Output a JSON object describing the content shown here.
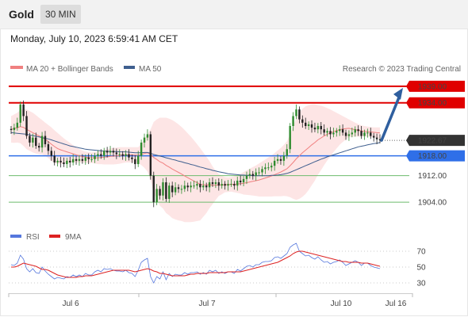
{
  "header": {
    "instrument": "Gold",
    "timeframe": "30 MIN",
    "datetime": "Monday, July 10, 2023 6:59:41 AM CET"
  },
  "legend": {
    "ma20": "MA 20 + Bollinger Bands",
    "ma50": "MA 50",
    "copyright": "Research © 2023 Trading Central",
    "rsi": "RSI",
    "ma9": "9MA"
  },
  "colors": {
    "up": "#2e8b2e",
    "down": "#222222",
    "resistance": "#e00000",
    "support": "#2f6fe8",
    "ma20": "#f08080",
    "ma50": "#3f5f8f",
    "band": "#fde0e0",
    "arrow": "#2f5f9f",
    "rsi": "#5577dd",
    "ma9": "#dd2222"
  },
  "chart_data": [
    {
      "type": "candlestick",
      "x_labels": [
        "Jul 6",
        "Jul 7",
        "Jul 10",
        "Jul 16"
      ],
      "ylim": [
        1898,
        1942
      ],
      "levels": [
        {
          "value": 1939.0,
          "label": "1939.00",
          "kind": "resistance"
        },
        {
          "value": 1934.0,
          "label": "1934.00",
          "kind": "resistance"
        },
        {
          "value": 1922.67,
          "label": "1922.67",
          "kind": "last"
        },
        {
          "value": 1918.0,
          "label": "1918.00",
          "kind": "support"
        },
        {
          "value": 1912.0,
          "label": "1912.00",
          "kind": "target"
        },
        {
          "value": 1904.0,
          "label": "1904.00",
          "kind": "target"
        }
      ],
      "close": [
        1925.8,
        1926.5,
        1928.0,
        1933.5,
        1930.0,
        1924.0,
        1922.0,
        1923.5,
        1921.0,
        1920.5,
        1924.0,
        1921.5,
        1919.5,
        1918.0,
        1916.0,
        1916.5,
        1916.0,
        1915.5,
        1916.5,
        1916.0,
        1917.0,
        1916.5,
        1917.0,
        1916.5,
        1917.5,
        1917.0,
        1917.0,
        1918.0,
        1918.5,
        1918.0,
        1919.5,
        1919.0,
        1919.5,
        1919.0,
        1918.5,
        1918.5,
        1918.0,
        1918.5,
        1917.5,
        1917.0,
        1915.5,
        1918.0,
        1922.0,
        1923.5,
        1924.5,
        1912.0,
        1904.0,
        1908.0,
        1906.0,
        1910.0,
        1905.0,
        1909.0,
        1907.0,
        1908.5,
        1908.0,
        1908.0,
        1909.0,
        1908.5,
        1909.0,
        1909.0,
        1909.5,
        1908.5,
        1909.0,
        1908.5,
        1910.0,
        1909.5,
        1910.0,
        1909.0,
        1909.5,
        1909.0,
        1909.5,
        1909.5,
        1909.0,
        1910.5,
        1910.0,
        1911.0,
        1912.0,
        1912.5,
        1912.0,
        1913.0,
        1913.0,
        1914.0,
        1914.5,
        1914.5,
        1915.0,
        1916.5,
        1917.0,
        1916.5,
        1918.0,
        1920.0,
        1927.0,
        1930.0,
        1932.0,
        1929.0,
        1928.0,
        1927.0,
        1927.5,
        1926.5,
        1926.0,
        1927.0,
        1926.0,
        1925.0,
        1925.5,
        1924.5,
        1925.0,
        1925.5,
        1926.0,
        1925.0,
        1924.0,
        1924.5,
        1925.0,
        1926.0,
        1925.5,
        1924.0,
        1925.0,
        1925.0,
        1924.0,
        1923.5,
        1923.0,
        1922.67
      ],
      "ma20": [
        1926.0,
        1926.2,
        1926.5,
        1926.8,
        1926.6,
        1926.0,
        1925.5,
        1925.0,
        1924.5,
        1924.0,
        1923.6,
        1923.0,
        1922.3,
        1921.5,
        1920.8,
        1920.2,
        1919.8,
        1919.5,
        1919.2,
        1918.9,
        1918.6,
        1918.3,
        1918.0,
        1917.8,
        1917.6,
        1917.5,
        1917.4,
        1917.4,
        1917.4,
        1917.5,
        1917.6,
        1917.7,
        1917.8,
        1917.9,
        1918.0,
        1918.1,
        1918.2,
        1918.3,
        1918.3,
        1918.3,
        1918.2,
        1918.2,
        1918.4,
        1918.7,
        1918.9,
        1918.4,
        1917.5,
        1916.9,
        1916.2,
        1915.8,
        1915.1,
        1914.6,
        1914.0,
        1913.5,
        1913.0,
        1912.5,
        1911.9,
        1911.4,
        1910.9,
        1910.4,
        1909.9,
        1909.4,
        1909.3,
        1909.2,
        1909.3,
        1909.1,
        1909.1,
        1909.2,
        1909.2,
        1909.3,
        1909.3,
        1909.4,
        1909.4,
        1909.5,
        1909.6,
        1909.7,
        1909.9,
        1910.1,
        1910.3,
        1910.5,
        1910.7,
        1911.0,
        1911.3,
        1911.6,
        1911.9,
        1912.3,
        1912.7,
        1913.1,
        1913.6,
        1914.1,
        1915.0,
        1916.0,
        1917.1,
        1918.0,
        1918.9,
        1919.7,
        1920.5,
        1921.3,
        1922.0,
        1922.8,
        1923.4,
        1924.0,
        1924.5,
        1924.9,
        1925.3,
        1925.6,
        1925.9,
        1926.1,
        1926.2,
        1926.3,
        1926.1,
        1925.9,
        1925.7,
        1925.5,
        1925.4,
        1925.3,
        1925.2,
        1925.1,
        1925.0,
        1924.9
      ],
      "bb_upper": [
        1930.0,
        1930.5,
        1931.0,
        1931.8,
        1932.2,
        1932.0,
        1931.5,
        1931.0,
        1930.3,
        1929.5,
        1928.8,
        1928.0,
        1927.3,
        1926.6,
        1925.7,
        1924.9,
        1924.1,
        1923.3,
        1922.6,
        1921.9,
        1921.2,
        1920.6,
        1920.0,
        1919.6,
        1919.3,
        1919.1,
        1919.0,
        1919.1,
        1919.3,
        1919.5,
        1919.8,
        1920.0,
        1920.2,
        1920.4,
        1920.5,
        1920.6,
        1920.6,
        1920.6,
        1920.6,
        1920.6,
        1920.6,
        1920.6,
        1921.6,
        1923.0,
        1924.5,
        1926.0,
        1928.2,
        1929.0,
        1929.5,
        1929.5,
        1929.5,
        1929.2,
        1928.8,
        1928.2,
        1927.5,
        1926.7,
        1925.8,
        1924.8,
        1923.8,
        1922.7,
        1921.5,
        1920.3,
        1919.0,
        1917.7,
        1916.4,
        1914.8,
        1913.5,
        1912.5,
        1912.0,
        1911.6,
        1911.5,
        1911.6,
        1911.8,
        1912.2,
        1912.6,
        1913.1,
        1913.6,
        1914.1,
        1914.6,
        1915.1,
        1915.7,
        1916.3,
        1916.9,
        1917.5,
        1918.1,
        1918.8,
        1919.6,
        1920.4,
        1921.3,
        1922.4,
        1924.5,
        1927.0,
        1929.5,
        1931.0,
        1932.2,
        1932.9,
        1933.3,
        1933.5,
        1933.5,
        1933.3,
        1933.1,
        1932.8,
        1932.4,
        1932.0,
        1931.5,
        1931.0,
        1930.5,
        1930.0,
        1929.5,
        1929.0,
        1928.5,
        1928.0,
        1927.6,
        1927.2,
        1927.0,
        1926.8,
        1926.7,
        1926.6,
        1926.6,
        1926.6
      ],
      "bb_lower": [
        1922.0,
        1921.9,
        1922.0,
        1921.8,
        1921.0,
        1920.0,
        1919.5,
        1919.0,
        1918.7,
        1918.5,
        1918.4,
        1918.0,
        1917.3,
        1916.4,
        1915.9,
        1915.5,
        1915.5,
        1915.7,
        1915.8,
        1915.9,
        1916.0,
        1916.0,
        1916.0,
        1916.0,
        1915.9,
        1915.9,
        1915.8,
        1915.7,
        1915.5,
        1915.5,
        1915.4,
        1915.4,
        1915.4,
        1915.4,
        1915.5,
        1915.6,
        1915.8,
        1916.0,
        1916.0,
        1916.0,
        1915.8,
        1915.8,
        1915.2,
        1914.4,
        1913.3,
        1910.8,
        1906.8,
        1904.8,
        1902.9,
        1902.1,
        1900.7,
        1900.0,
        1899.2,
        1898.8,
        1898.5,
        1898.3,
        1898.0,
        1898.0,
        1898.0,
        1898.1,
        1898.3,
        1898.5,
        1899.6,
        1900.7,
        1902.2,
        1903.4,
        1904.7,
        1905.9,
        1906.4,
        1907.0,
        1907.1,
        1907.2,
        1907.0,
        1906.8,
        1906.6,
        1906.3,
        1906.2,
        1906.1,
        1906.0,
        1905.9,
        1905.7,
        1905.7,
        1905.7,
        1905.7,
        1905.7,
        1905.8,
        1905.8,
        1905.8,
        1905.9,
        1905.8,
        1905.5,
        1905.0,
        1904.7,
        1905.0,
        1905.6,
        1906.5,
        1907.7,
        1909.1,
        1910.5,
        1912.3,
        1913.7,
        1915.2,
        1916.6,
        1917.8,
        1919.1,
        1920.2,
        1921.3,
        1922.2,
        1922.9,
        1923.6,
        1923.7,
        1923.8,
        1923.8,
        1923.8,
        1923.8,
        1923.8,
        1923.7,
        1923.6,
        1923.4,
        1923.2
      ],
      "ma50": [
        1925.0,
        1924.9,
        1924.8,
        1924.7,
        1924.6,
        1924.5,
        1924.3,
        1924.1,
        1923.9,
        1923.7,
        1923.5,
        1923.3,
        1923.1,
        1922.8,
        1922.5,
        1922.2,
        1921.9,
        1921.6,
        1921.3,
        1921.0,
        1920.8,
        1920.6,
        1920.4,
        1920.2,
        1920.0,
        1919.9,
        1919.8,
        1919.7,
        1919.6,
        1919.5,
        1919.4,
        1919.4,
        1919.3,
        1919.3,
        1919.3,
        1919.2,
        1919.2,
        1919.2,
        1919.1,
        1919.0,
        1918.9,
        1918.9,
        1918.9,
        1919.0,
        1919.0,
        1918.8,
        1918.4,
        1918.2,
        1917.9,
        1917.7,
        1917.4,
        1917.2,
        1916.9,
        1916.7,
        1916.4,
        1916.2,
        1915.9,
        1915.7,
        1915.4,
        1915.2,
        1914.9,
        1914.6,
        1914.4,
        1914.1,
        1913.9,
        1913.6,
        1913.4,
        1913.2,
        1913.0,
        1912.8,
        1912.6,
        1912.5,
        1912.4,
        1912.3,
        1912.2,
        1912.2,
        1912.1,
        1912.1,
        1912.0,
        1912.0,
        1912.0,
        1912.0,
        1912.0,
        1912.0,
        1912.1,
        1912.1,
        1912.2,
        1912.3,
        1912.5,
        1912.7,
        1913.0,
        1913.4,
        1913.8,
        1914.2,
        1914.6,
        1915.0,
        1915.4,
        1915.8,
        1916.2,
        1916.6,
        1917.0,
        1917.3,
        1917.7,
        1918.0,
        1918.3,
        1918.6,
        1918.9,
        1919.2,
        1919.5,
        1919.8,
        1920.1,
        1920.4,
        1920.7,
        1920.9,
        1921.1,
        1921.3,
        1921.5,
        1921.7,
        1921.8,
        1922.0
      ],
      "forecast_arrow": {
        "from": 1922.67,
        "to": 1939.0
      }
    },
    {
      "type": "line",
      "title": "RSI",
      "ylim": [
        20,
        80
      ],
      "yticks": [
        70,
        50,
        30
      ],
      "series": [
        {
          "name": "RSI",
          "values": [
            53,
            52,
            55,
            65,
            60,
            48,
            44,
            48,
            43,
            42,
            50,
            45,
            41,
            38,
            35,
            37,
            36,
            35,
            38,
            37,
            40,
            38,
            40,
            38,
            42,
            40,
            40,
            44,
            46,
            44,
            48,
            47,
            48,
            46,
            45,
            45,
            44,
            46,
            43,
            42,
            38,
            46,
            56,
            59,
            61,
            38,
            30,
            38,
            35,
            44,
            34,
            42,
            38,
            41,
            40,
            40,
            43,
            41,
            43,
            43,
            44,
            41,
            43,
            41,
            46,
            44,
            46,
            42,
            44,
            42,
            44,
            44,
            42,
            47,
            45,
            48,
            51,
            52,
            50,
            53,
            53,
            56,
            57,
            57,
            58,
            62,
            63,
            61,
            64,
            67,
            75,
            78,
            80,
            70,
            67,
            64,
            65,
            62,
            60,
            63,
            59,
            56,
            57,
            54,
            56,
            57,
            59,
            56,
            52,
            54,
            56,
            58,
            56,
            52,
            55,
            55,
            52,
            50,
            49,
            48
          ]
        },
        {
          "name": "9MA",
          "values": [
            50,
            50,
            51,
            53,
            55,
            54,
            53,
            52,
            51,
            49,
            47,
            47,
            46,
            44,
            42,
            40,
            39,
            38,
            37,
            37,
            37,
            37,
            38,
            38,
            39,
            39,
            39,
            40,
            41,
            42,
            43,
            44,
            45,
            46,
            46,
            46,
            46,
            46,
            46,
            45,
            44,
            45,
            46,
            47,
            48,
            47,
            45,
            44,
            42,
            42,
            41,
            40,
            39,
            39,
            39,
            39,
            39,
            40,
            41,
            41,
            42,
            42,
            42,
            42,
            43,
            43,
            43,
            43,
            43,
            43,
            44,
            44,
            44,
            44,
            44,
            45,
            46,
            47,
            48,
            49,
            50,
            51,
            52,
            53,
            54,
            55,
            56,
            58,
            60,
            62,
            64,
            67,
            69,
            70,
            70,
            69,
            68,
            67,
            66,
            65,
            64,
            63,
            62,
            61,
            60,
            59,
            58,
            57,
            57,
            56,
            56,
            56,
            56,
            55,
            55,
            55,
            54,
            53,
            52,
            51
          ]
        }
      ]
    }
  ]
}
